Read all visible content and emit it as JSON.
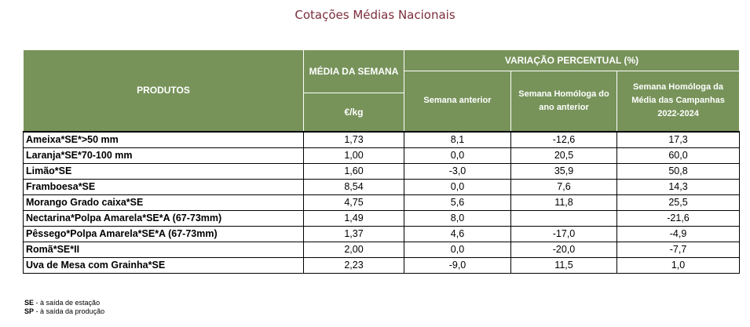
{
  "title": "Cotações Médias Nacionais",
  "header": {
    "produtos": "PRODUTOS",
    "media": "MÉDIA DA SEMANA",
    "unit": "€/kg",
    "variacao": "VARIAÇÃO PERCENTUAL (%)",
    "semana_anterior": "Semana anterior",
    "homologa_ano": "Semana Homóloga do ano anterior",
    "homologa_campanhas": "Semana Homóloga da Média das Campanhas 2022-2024"
  },
  "rows": [
    {
      "produto": "Ameixa*SE*>50 mm",
      "media": "1,73",
      "anterior": "8,1",
      "ano": "-12,6",
      "campanhas": "17,3"
    },
    {
      "produto": "Laranja*SE*70-100 mm",
      "media": "1,00",
      "anterior": "0,0",
      "ano": "20,5",
      "campanhas": "60,0"
    },
    {
      "produto": "Limão*SE",
      "media": "1,60",
      "anterior": "-3,0",
      "ano": "35,9",
      "campanhas": "50,8"
    },
    {
      "produto": "Framboesa*SE",
      "media": "8,54",
      "anterior": "0,0",
      "ano": "7,6",
      "campanhas": "14,3"
    },
    {
      "produto": "Morango Grado caixa*SE",
      "media": "4,75",
      "anterior": "5,6",
      "ano": "11,8",
      "campanhas": "25,5"
    },
    {
      "produto": "Nectarina*Polpa Amarela*SE*A (67-73mm)",
      "media": "1,49",
      "anterior": "8,0",
      "ano": "",
      "campanhas": "-21,6"
    },
    {
      "produto": "Pêssego*Polpa Amarela*SE*A (67-73mm)",
      "media": "1,37",
      "anterior": "4,6",
      "ano": "-17,0",
      "campanhas": "-4,9"
    },
    {
      "produto": "Romã*SE*II",
      "media": "2,00",
      "anterior": "0,0",
      "ano": "-20,0",
      "campanhas": "-7,7"
    },
    {
      "produto": "Uva de Mesa com Grainha*SE",
      "media": "2,23",
      "anterior": "-9,0",
      "ano": "11,5",
      "campanhas": "1,0"
    }
  ],
  "notes": [
    {
      "code": "SE",
      "text": " - à saída de estação"
    },
    {
      "code": "SP",
      "text": " - à saída da produção"
    }
  ]
}
